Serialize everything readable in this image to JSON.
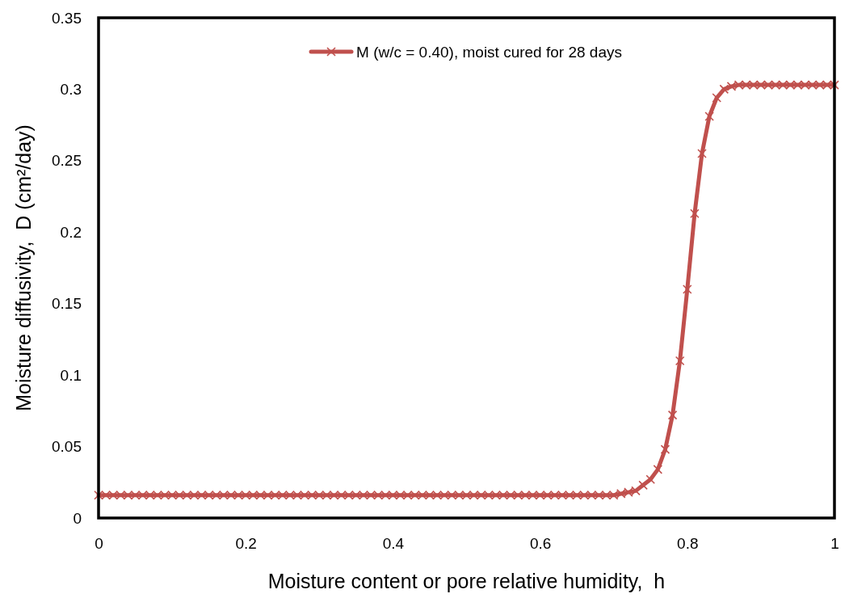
{
  "chart_data": {
    "type": "line",
    "xlabel": "Moisture content or pore relative humidity,  h",
    "ylabel": "Moisture diffusivity,  D (cm²/day)",
    "x": [
      0,
      0.01,
      0.02,
      0.03,
      0.04,
      0.05,
      0.06,
      0.07,
      0.08,
      0.09,
      0.1,
      0.11,
      0.12,
      0.13,
      0.14,
      0.15,
      0.16,
      0.17,
      0.18,
      0.19,
      0.2,
      0.21,
      0.22,
      0.23,
      0.24,
      0.25,
      0.26,
      0.27,
      0.28,
      0.29,
      0.3,
      0.31,
      0.32,
      0.33,
      0.34,
      0.35,
      0.36,
      0.37,
      0.38,
      0.39,
      0.4,
      0.41,
      0.42,
      0.43,
      0.44,
      0.45,
      0.46,
      0.47,
      0.48,
      0.49,
      0.5,
      0.51,
      0.52,
      0.53,
      0.54,
      0.55,
      0.56,
      0.57,
      0.58,
      0.59,
      0.6,
      0.61,
      0.62,
      0.63,
      0.64,
      0.65,
      0.66,
      0.67,
      0.68,
      0.69,
      0.7,
      0.71,
      0.72,
      0.73,
      0.74,
      0.75,
      0.76,
      0.77,
      0.78,
      0.79,
      0.8,
      0.81,
      0.82,
      0.83,
      0.84,
      0.85,
      0.86,
      0.87,
      0.88,
      0.89,
      0.9,
      0.91,
      0.92,
      0.93,
      0.94,
      0.95,
      0.96,
      0.97,
      0.98,
      0.99,
      1
    ],
    "series": [
      {
        "name": "M (w/c = 0.40), moist cured for 28 days",
        "color": "#c0504d",
        "values": [
          0.016,
          0.016,
          0.016,
          0.016,
          0.016,
          0.016,
          0.016,
          0.016,
          0.016,
          0.016,
          0.016,
          0.016,
          0.016,
          0.016,
          0.016,
          0.016,
          0.016,
          0.016,
          0.016,
          0.016,
          0.016,
          0.016,
          0.016,
          0.016,
          0.016,
          0.016,
          0.016,
          0.016,
          0.016,
          0.016,
          0.016,
          0.016,
          0.016,
          0.016,
          0.016,
          0.016,
          0.016,
          0.016,
          0.016,
          0.016,
          0.016,
          0.016,
          0.016,
          0.016,
          0.016,
          0.016,
          0.016,
          0.016,
          0.016,
          0.016,
          0.016,
          0.016,
          0.016,
          0.016,
          0.016,
          0.016,
          0.016,
          0.016,
          0.016,
          0.016,
          0.016,
          0.016,
          0.016,
          0.016,
          0.016,
          0.016,
          0.016,
          0.016,
          0.016,
          0.016,
          0.016,
          0.017,
          0.018,
          0.019,
          0.023,
          0.027,
          0.034,
          0.048,
          0.072,
          0.11,
          0.16,
          0.213,
          0.255,
          0.281,
          0.294,
          0.3,
          0.302,
          0.303,
          0.303,
          0.303,
          0.303,
          0.303,
          0.303,
          0.303,
          0.303,
          0.303,
          0.303,
          0.303,
          0.303,
          0.303,
          0.303
        ]
      }
    ],
    "xlim": [
      0,
      1
    ],
    "xticks": [
      0,
      0.2,
      0.4,
      0.6,
      0.8,
      1
    ],
    "ylim": [
      0,
      0.35
    ],
    "yticks": [
      0,
      0.05,
      0.1,
      0.15,
      0.2,
      0.25,
      0.3,
      0.35
    ],
    "grid": false,
    "legend": "top",
    "marker": "cross",
    "line_style": "solid"
  }
}
